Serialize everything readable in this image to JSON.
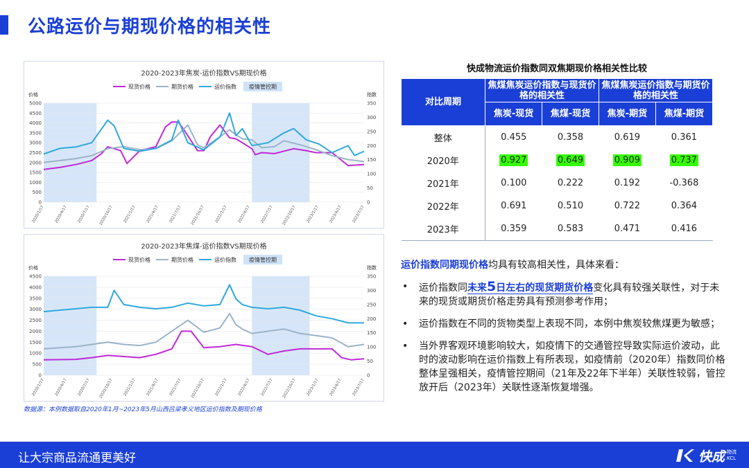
{
  "page": {
    "title": "公路运价与期现价格的相关性"
  },
  "chart_data": [
    {
      "type": "line",
      "title": "2020-2023年焦炭-运价指数VS期现价格",
      "ylabel_left": "价格",
      "ylabel_right": "指数",
      "ylim_left": [
        0,
        5000
      ],
      "ylim_right": [
        0,
        350
      ],
      "yticks_left": [
        "0",
        "500",
        "1000",
        "1500",
        "2000",
        "2500",
        "3000",
        "3500",
        "4000",
        "4500",
        "5000"
      ],
      "yticks_right": [
        "0",
        "50",
        "100",
        "150",
        "200",
        "250",
        "300",
        "350"
      ],
      "xlabels": [
        "2020/1/17",
        "2020/4/17",
        "2020/7/17",
        "2020/10/17",
        "2021/1/17",
        "2021/4/17",
        "2021/7/17",
        "2021/10/17",
        "2022/1/17",
        "2022/4/17",
        "2022/7/17",
        "2022/10/17",
        "2023/1/17",
        "2023/4/17",
        "2023/7/17"
      ],
      "legend_position": "top",
      "legend_annotation": "疫情管控期",
      "shaded": [
        [
          0,
          0.165
        ],
        [
          0.65,
          0.83
        ]
      ],
      "series": [
        {
          "name": "现货价格",
          "axis": "left",
          "color": "#c028d8",
          "x": [
            0,
            0.05,
            0.1,
            0.15,
            0.18,
            0.2,
            0.24,
            0.26,
            0.3,
            0.35,
            0.38,
            0.4,
            0.42,
            0.44,
            0.48,
            0.5,
            0.52,
            0.55,
            0.58,
            0.6,
            0.62,
            0.65,
            0.66,
            0.68,
            0.72,
            0.78,
            0.82,
            0.85,
            0.9,
            0.95,
            1
          ],
          "values": [
            1650,
            1750,
            1900,
            2100,
            2450,
            2800,
            2600,
            1950,
            2600,
            2800,
            3800,
            4050,
            4050,
            3600,
            2600,
            2600,
            3300,
            3900,
            3250,
            3200,
            3000,
            2700,
            2400,
            2500,
            2450,
            2700,
            2600,
            2500,
            2500,
            1850,
            1900
          ]
        },
        {
          "name": "期货价格",
          "axis": "left",
          "color": "#9ab3c8",
          "x": [
            0,
            0.05,
            0.1,
            0.15,
            0.2,
            0.25,
            0.3,
            0.35,
            0.4,
            0.45,
            0.48,
            0.5,
            0.55,
            0.58,
            0.6,
            0.62,
            0.65,
            0.68,
            0.72,
            0.75,
            0.8,
            0.85,
            0.9,
            0.95,
            1
          ],
          "values": [
            2000,
            2100,
            2200,
            2350,
            2700,
            2800,
            2650,
            2700,
            3100,
            3900,
            2900,
            2750,
            3300,
            3650,
            3400,
            3200,
            3150,
            2750,
            2800,
            3100,
            2900,
            2650,
            2350,
            2150,
            2050
          ]
        },
        {
          "name": "运价指数",
          "axis": "right",
          "color": "#2fa8dc",
          "x": [
            0,
            0.05,
            0.1,
            0.15,
            0.2,
            0.22,
            0.25,
            0.3,
            0.35,
            0.4,
            0.42,
            0.45,
            0.5,
            0.55,
            0.58,
            0.6,
            0.62,
            0.65,
            0.7,
            0.75,
            0.78,
            0.82,
            0.86,
            0.9,
            0.95,
            0.97,
            1
          ],
          "values": [
            170,
            190,
            195,
            210,
            290,
            270,
            190,
            180,
            190,
            220,
            290,
            210,
            185,
            230,
            315,
            235,
            260,
            200,
            210,
            245,
            260,
            220,
            205,
            175,
            200,
            165,
            180
          ]
        }
      ]
    },
    {
      "type": "line",
      "title": "2020-2023年焦煤-运价指数VS期现价格",
      "ylabel_left": "价格",
      "ylabel_right": "指数",
      "ylim_left": [
        0,
        4500
      ],
      "ylim_right": [
        0,
        350
      ],
      "yticks_left": [
        "0",
        "500",
        "1000",
        "1500",
        "2000",
        "2500",
        "3000",
        "3500",
        "4000",
        "4500"
      ],
      "yticks_right": [
        "0",
        "50",
        "100",
        "150",
        "200",
        "250",
        "300",
        "350"
      ],
      "xlabels": [
        "2020/1/17",
        "2020/4/17",
        "2020/7/17",
        "2020/10/17",
        "2021/1/17",
        "2021/4/17",
        "2021/7/17",
        "2021/10/17",
        "2022/1/17",
        "2022/4/17",
        "2022/7/17",
        "2022/10/17",
        "2023/1/17",
        "2023/4/17",
        "2023/7/17"
      ],
      "legend_position": "top",
      "legend_annotation": "疫情管控期",
      "shaded": [
        [
          0,
          0.165
        ],
        [
          0.65,
          0.83
        ]
      ],
      "series": [
        {
          "name": "现货价格",
          "axis": "left",
          "color": "#c028d8",
          "x": [
            0,
            0.1,
            0.15,
            0.2,
            0.25,
            0.3,
            0.35,
            0.4,
            0.43,
            0.46,
            0.5,
            0.55,
            0.6,
            0.65,
            0.7,
            0.75,
            0.8,
            0.85,
            0.9,
            0.93,
            0.96,
            1
          ],
          "values": [
            700,
            720,
            800,
            900,
            850,
            800,
            950,
            1200,
            2000,
            2000,
            1250,
            1300,
            1400,
            1300,
            950,
            1100,
            1200,
            1200,
            1200,
            800,
            700,
            750
          ]
        },
        {
          "name": "期货价格",
          "axis": "left",
          "color": "#9ab3c8",
          "x": [
            0,
            0.05,
            0.1,
            0.15,
            0.2,
            0.25,
            0.3,
            0.35,
            0.4,
            0.45,
            0.5,
            0.55,
            0.58,
            0.6,
            0.62,
            0.65,
            0.7,
            0.75,
            0.8,
            0.85,
            0.9,
            0.95,
            1
          ],
          "values": [
            1200,
            1250,
            1300,
            1400,
            1500,
            1400,
            1350,
            1500,
            2000,
            2500,
            1950,
            2150,
            2800,
            2300,
            2100,
            1900,
            2000,
            2100,
            1900,
            1800,
            1700,
            1300,
            1400
          ]
        },
        {
          "name": "运价指数",
          "axis": "right",
          "color": "#2fa8dc",
          "x": [
            0,
            0.05,
            0.1,
            0.15,
            0.2,
            0.22,
            0.25,
            0.3,
            0.35,
            0.4,
            0.45,
            0.5,
            0.55,
            0.58,
            0.6,
            0.62,
            0.65,
            0.7,
            0.75,
            0.8,
            0.85,
            0.9,
            0.95,
            1
          ],
          "values": [
            225,
            230,
            235,
            240,
            240,
            300,
            250,
            240,
            235,
            240,
            255,
            245,
            250,
            320,
            270,
            250,
            240,
            235,
            240,
            230,
            210,
            200,
            185,
            185
          ]
        }
      ]
    }
  ],
  "source_note": "数据源：本例数据取自2020年1月~2023年5月山西吕梁孝义地区运价指数及期现价格",
  "table": {
    "title": "快成物流运价指数同双焦期现价格相关性比较",
    "period_header": "对比周期",
    "group_headers": [
      "焦煤焦炭运价指数与现货价格的相关性",
      "焦煤焦炭运价指数与期货价格的相关性"
    ],
    "sub_headers": [
      "焦炭-现货",
      "焦煤-现货",
      "焦炭-期货",
      "焦煤-期货"
    ],
    "rows": [
      {
        "label": "整体",
        "values": [
          "0.455",
          "0.358",
          "0.619",
          "0.361"
        ],
        "highlight": false
      },
      {
        "label": "2020年",
        "values": [
          "0.927",
          "0.649",
          "0.909",
          "0.737"
        ],
        "highlight": true
      },
      {
        "label": "2021年",
        "values": [
          "0.100",
          "0.222",
          "0.192",
          "-0.368"
        ],
        "highlight": false
      },
      {
        "label": "2022年",
        "values": [
          "0.691",
          "0.510",
          "0.722",
          "0.364"
        ],
        "highlight": false
      },
      {
        "label": "2023年",
        "values": [
          "0.359",
          "0.583",
          "0.471",
          "0.416"
        ],
        "highlight": false
      }
    ]
  },
  "summary": {
    "part1": "运价指数",
    "part2": "同期现价格",
    "part3": "均具有较高相关性，具体来看："
  },
  "bullets": {
    "b1_pre": "运价指数同",
    "b1_em1": "未来",
    "b1_big": "5",
    "b1_em2": "日左右的现货期货价格",
    "b1_post": "变化具有较强关联性，对于未来的现货或期货价格走势具有预测参考作用；",
    "b2": "运价指数在不同的货物类型上表现不同，本例中焦炭较焦煤更为敏感；",
    "b3": "当外界客观环境影响较大，如疫情下的交通管控导致实际运价波动，此时的波动影响在运价指数上有所表现，如疫情前（2020年）指数同价格整体呈强相关，疫情管控期间（21年及22年下半年）关联性较弱，管控放开后（2023年）关联性逐渐恢复增强。"
  },
  "footer": {
    "slogan": "让大宗商品流通更美好",
    "logo_text": "快成",
    "logo_sub_top": "物流",
    "logo_sub_bottom": "KCL"
  },
  "colors": {
    "brand": "#1a3fd6",
    "highlight": "#33ff00"
  }
}
